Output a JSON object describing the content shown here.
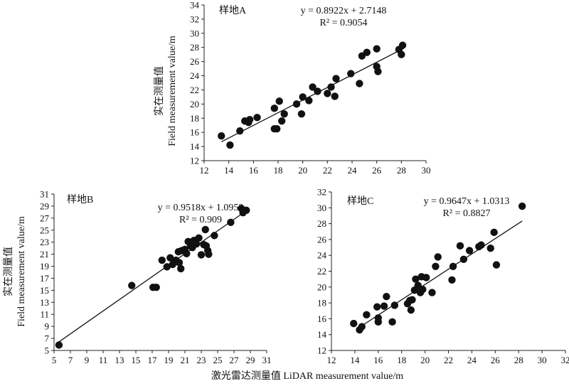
{
  "ylabel_cn": "实在测量值",
  "ylabel_en": "Field measurement value/m",
  "xlabel": "激光雷达测量值 LiDAR measurement value/m",
  "chart_data": [
    {
      "type": "scatter",
      "title": "样地A",
      "equation": "y = 0.8922x + 2.7148",
      "r2": "R² = 0.9054",
      "xlim": [
        12,
        30
      ],
      "ylim": [
        12,
        34
      ],
      "xticks": [
        12,
        14,
        16,
        18,
        20,
        22,
        24,
        26,
        28,
        30
      ],
      "yticks": [
        12,
        14,
        16,
        18,
        20,
        22,
        24,
        26,
        28,
        30,
        32,
        34
      ],
      "fit": {
        "slope": 0.8922,
        "intercept": 2.7148,
        "x_range": [
          13.4,
          28.2
        ]
      },
      "points": [
        [
          13.4,
          15.5
        ],
        [
          14.1,
          14.2
        ],
        [
          14.9,
          16.2
        ],
        [
          15.3,
          17.6
        ],
        [
          15.6,
          17.4
        ],
        [
          15.7,
          17.8
        ],
        [
          16.3,
          18.1
        ],
        [
          17.7,
          19.4
        ],
        [
          17.7,
          16.5
        ],
        [
          17.9,
          16.5
        ],
        [
          18.1,
          20.4
        ],
        [
          18.3,
          17.6
        ],
        [
          18.5,
          18.6
        ],
        [
          19.5,
          20.0
        ],
        [
          19.9,
          18.6
        ],
        [
          20.0,
          21.0
        ],
        [
          20.5,
          20.5
        ],
        [
          20.8,
          22.4
        ],
        [
          21.2,
          21.8
        ],
        [
          22.0,
          21.5
        ],
        [
          22.3,
          22.4
        ],
        [
          22.6,
          21.1
        ],
        [
          22.7,
          23.6
        ],
        [
          23.9,
          24.3
        ],
        [
          24.6,
          22.9
        ],
        [
          24.8,
          26.8
        ],
        [
          25.2,
          27.3
        ],
        [
          26.0,
          27.8
        ],
        [
          26.0,
          25.3
        ],
        [
          26.1,
          24.6
        ],
        [
          27.8,
          27.7
        ],
        [
          28.0,
          27.0
        ],
        [
          28.1,
          28.3
        ]
      ]
    },
    {
      "type": "scatter",
      "title": "样地B",
      "equation": "y = 0.9518x + 1.0953",
      "r2": "R² = 0.909",
      "xlim": [
        5,
        31
      ],
      "ylim": [
        5,
        31
      ],
      "xticks": [
        5,
        7,
        9,
        11,
        13,
        15,
        17,
        19,
        21,
        23,
        25,
        27,
        29,
        31
      ],
      "yticks": [
        5,
        7,
        9,
        11,
        13,
        15,
        17,
        19,
        21,
        23,
        25,
        27,
        29,
        31
      ],
      "fit": {
        "slope": 0.9518,
        "intercept": 1.0953,
        "x_range": [
          5.4,
          28.7
        ]
      },
      "points": [
        [
          5.6,
          5.9
        ],
        [
          14.5,
          15.8
        ],
        [
          17.1,
          15.5
        ],
        [
          17.5,
          15.5
        ],
        [
          18.2,
          20.0
        ],
        [
          18.8,
          18.9
        ],
        [
          19.2,
          20.4
        ],
        [
          19.5,
          19.3
        ],
        [
          19.9,
          20.0
        ],
        [
          20.2,
          21.4
        ],
        [
          20.3,
          19.6
        ],
        [
          20.5,
          18.6
        ],
        [
          20.6,
          21.6
        ],
        [
          21.0,
          21.8
        ],
        [
          21.2,
          21.1
        ],
        [
          21.4,
          23.1
        ],
        [
          21.7,
          22.4
        ],
        [
          21.9,
          22.1
        ],
        [
          22.1,
          23.3
        ],
        [
          22.4,
          22.7
        ],
        [
          22.7,
          23.7
        ],
        [
          23.0,
          20.9
        ],
        [
          23.3,
          22.6
        ],
        [
          23.5,
          25.1
        ],
        [
          23.6,
          22.4
        ],
        [
          23.8,
          21.6
        ],
        [
          23.9,
          21.0
        ],
        [
          24.6,
          24.1
        ],
        [
          26.6,
          26.3
        ],
        [
          27.9,
          28.6
        ],
        [
          28.1,
          27.9
        ],
        [
          28.5,
          28.3
        ]
      ]
    },
    {
      "type": "scatter",
      "title": "样地C",
      "equation": "y = 0.9647x + 1.0313",
      "r2": "R² = 0.8827",
      "xlim": [
        12,
        32
      ],
      "ylim": [
        12,
        32
      ],
      "xticks": [
        12,
        14,
        16,
        18,
        20,
        22,
        24,
        26,
        28,
        30,
        32
      ],
      "yticks": [
        12,
        14,
        16,
        18,
        20,
        22,
        24,
        26,
        28,
        30,
        32
      ],
      "fit": {
        "slope": 0.9647,
        "intercept": 1.0313,
        "x_range": [
          14.2,
          28.3
        ]
      },
      "points": [
        [
          13.9,
          15.4
        ],
        [
          14.4,
          14.6
        ],
        [
          14.6,
          15.0
        ],
        [
          15.0,
          16.5
        ],
        [
          15.9,
          17.5
        ],
        [
          16.0,
          16.1
        ],
        [
          16.0,
          15.6
        ],
        [
          16.5,
          17.6
        ],
        [
          16.7,
          18.8
        ],
        [
          17.2,
          15.6
        ],
        [
          17.4,
          17.7
        ],
        [
          18.5,
          17.9
        ],
        [
          18.7,
          18.3
        ],
        [
          18.8,
          17.1
        ],
        [
          18.9,
          18.4
        ],
        [
          19.1,
          19.6
        ],
        [
          19.2,
          21.0
        ],
        [
          19.4,
          20.2
        ],
        [
          19.6,
          19.3
        ],
        [
          19.7,
          21.3
        ],
        [
          19.8,
          19.7
        ],
        [
          20.1,
          21.2
        ],
        [
          20.6,
          19.3
        ],
        [
          20.9,
          22.6
        ],
        [
          21.1,
          23.8
        ],
        [
          22.3,
          20.9
        ],
        [
          22.4,
          22.6
        ],
        [
          23.0,
          25.2
        ],
        [
          23.3,
          23.5
        ],
        [
          23.8,
          24.6
        ],
        [
          24.6,
          25.1
        ],
        [
          24.8,
          25.3
        ],
        [
          25.6,
          24.9
        ],
        [
          25.9,
          26.9
        ],
        [
          26.1,
          22.8
        ],
        [
          28.3,
          30.2
        ]
      ]
    }
  ]
}
